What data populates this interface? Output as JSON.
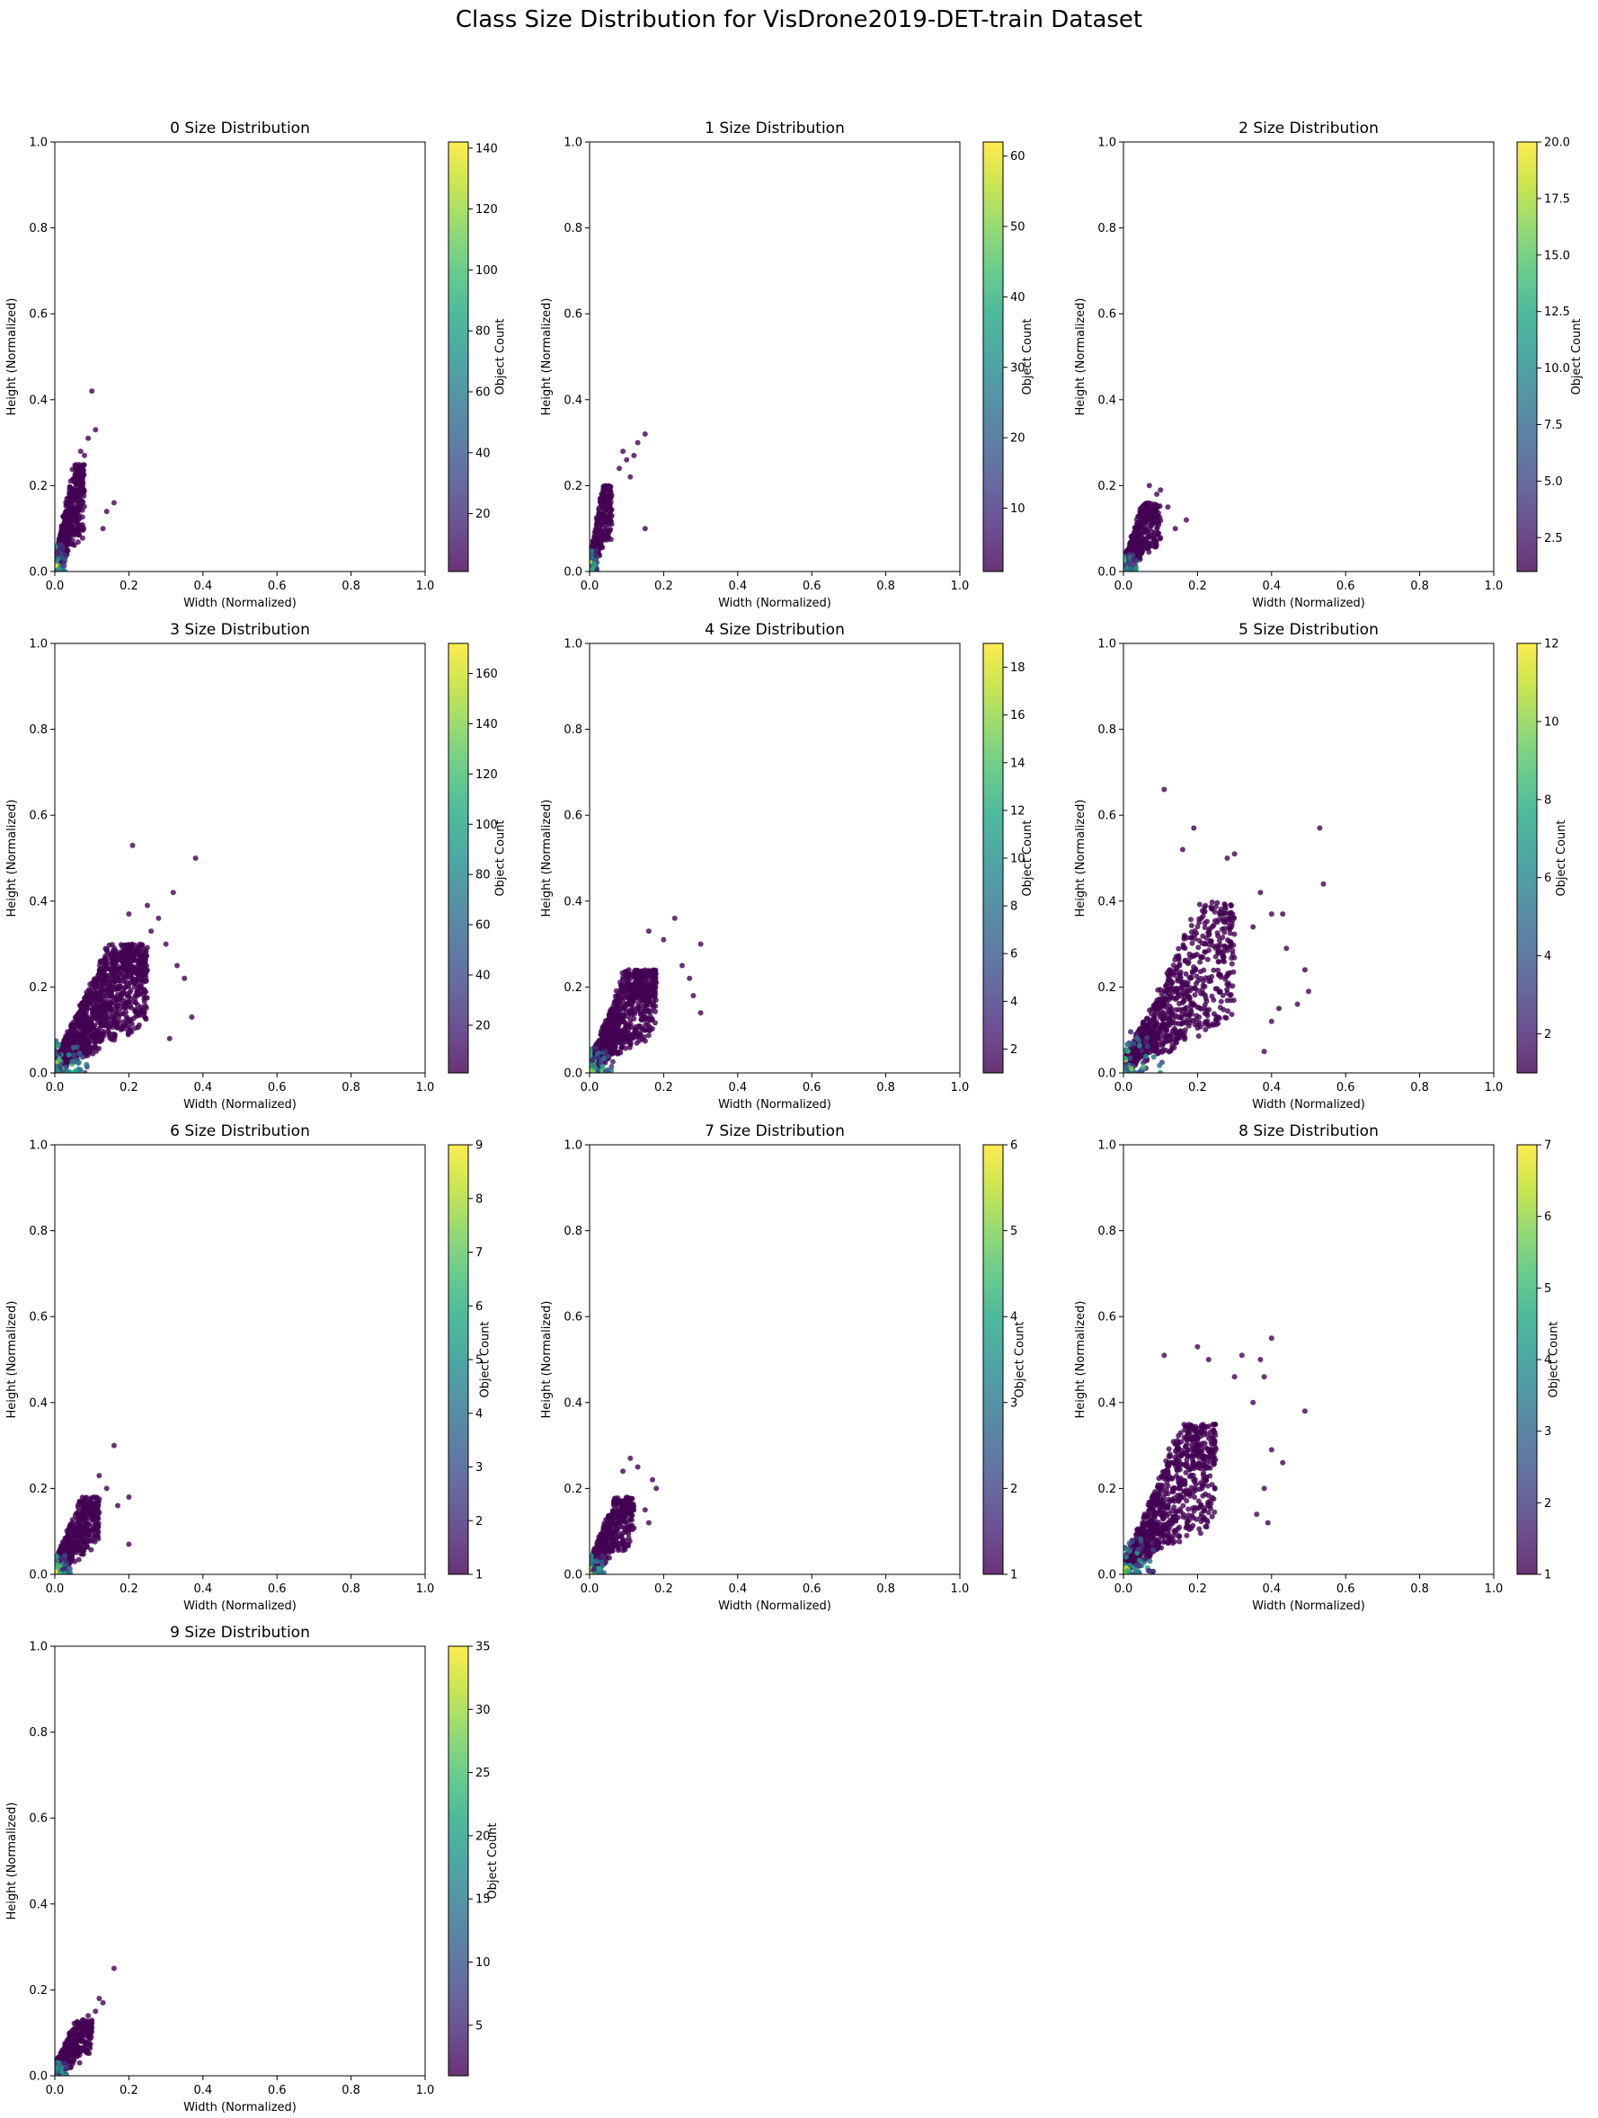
{
  "figure": {
    "title": "Class Size Distribution for VisDrone2019-DET-train Dataset"
  },
  "chart_data": [
    {
      "type": "scatter",
      "title": "0 Size Distribution",
      "xlabel": "Width (Normalized)",
      "ylabel": "Height (Normalized)",
      "xlim": [
        0,
        1
      ],
      "ylim": [
        0,
        1
      ],
      "xticks": [
        "0.0",
        "0.2",
        "0.4",
        "0.6",
        "0.8",
        "1.0"
      ],
      "yticks": [
        "0.0",
        "0.2",
        "0.4",
        "0.6",
        "0.8",
        "1.0"
      ],
      "colorbar": {
        "label": "Object Count",
        "min": 1,
        "max": 142,
        "ticks": [
          "20",
          "40",
          "60",
          "80",
          "100",
          "120",
          "140"
        ]
      },
      "cluster": {
        "wmax": 0.08,
        "hmax": 0.25,
        "slope": 2.8,
        "n": 650
      },
      "outliers": [
        [
          0.1,
          0.42
        ],
        [
          0.11,
          0.33
        ],
        [
          0.09,
          0.31
        ],
        [
          0.16,
          0.16
        ],
        [
          0.14,
          0.14
        ],
        [
          0.13,
          0.1
        ],
        [
          0.08,
          0.27
        ],
        [
          0.07,
          0.28
        ]
      ]
    },
    {
      "type": "scatter",
      "title": "1 Size Distribution",
      "xlabel": "Width (Normalized)",
      "ylabel": "Height (Normalized)",
      "xlim": [
        0,
        1
      ],
      "ylim": [
        0,
        1
      ],
      "xticks": [
        "0.0",
        "0.2",
        "0.4",
        "0.6",
        "0.8",
        "1.0"
      ],
      "yticks": [
        "0.0",
        "0.2",
        "0.4",
        "0.6",
        "0.8",
        "1.0"
      ],
      "colorbar": {
        "label": "Object Count",
        "min": 1,
        "max": 62,
        "ticks": [
          "10",
          "20",
          "30",
          "40",
          "50",
          "60"
        ]
      },
      "cluster": {
        "wmax": 0.06,
        "hmax": 0.2,
        "slope": 3.2,
        "n": 420
      },
      "outliers": [
        [
          0.15,
          0.32
        ],
        [
          0.13,
          0.3
        ],
        [
          0.12,
          0.27
        ],
        [
          0.1,
          0.26
        ],
        [
          0.09,
          0.28
        ],
        [
          0.15,
          0.1
        ],
        [
          0.11,
          0.22
        ],
        [
          0.08,
          0.24
        ]
      ]
    },
    {
      "type": "scatter",
      "title": "2 Size Distribution",
      "xlabel": "Width (Normalized)",
      "ylabel": "Height (Normalized)",
      "xlim": [
        0,
        1
      ],
      "ylim": [
        0,
        1
      ],
      "xticks": [
        "0.0",
        "0.2",
        "0.4",
        "0.6",
        "0.8",
        "1.0"
      ],
      "yticks": [
        "0.0",
        "0.2",
        "0.4",
        "0.6",
        "0.8",
        "1.0"
      ],
      "colorbar": {
        "label": "Object Count",
        "min": 1,
        "max": 20,
        "ticks": [
          "2.5",
          "5.0",
          "7.5",
          "10.0",
          "12.5",
          "15.0",
          "17.5",
          "20.0"
        ]
      },
      "cluster": {
        "wmax": 0.1,
        "hmax": 0.16,
        "slope": 1.6,
        "n": 520
      },
      "outliers": [
        [
          0.17,
          0.12
        ],
        [
          0.1,
          0.19
        ],
        [
          0.07,
          0.2
        ],
        [
          0.14,
          0.1
        ],
        [
          0.12,
          0.15
        ],
        [
          0.09,
          0.18
        ]
      ]
    },
    {
      "type": "scatter",
      "title": "3 Size Distribution",
      "xlabel": "Width (Normalized)",
      "ylabel": "Height (Normalized)",
      "xlim": [
        0,
        1
      ],
      "ylim": [
        0,
        1
      ],
      "xticks": [
        "0.0",
        "0.2",
        "0.4",
        "0.6",
        "0.8",
        "1.0"
      ],
      "yticks": [
        "0.0",
        "0.2",
        "0.4",
        "0.6",
        "0.8",
        "1.0"
      ],
      "colorbar": {
        "label": "Object Count",
        "min": 1,
        "max": 172,
        "ticks": [
          "20",
          "40",
          "60",
          "80",
          "100",
          "120",
          "140",
          "160"
        ]
      },
      "cluster": {
        "wmax": 0.25,
        "hmax": 0.3,
        "slope": 1.2,
        "n": 1600
      },
      "outliers": [
        [
          0.21,
          0.53
        ],
        [
          0.38,
          0.5
        ],
        [
          0.32,
          0.42
        ],
        [
          0.25,
          0.39
        ],
        [
          0.28,
          0.36
        ],
        [
          0.35,
          0.22
        ],
        [
          0.37,
          0.13
        ],
        [
          0.3,
          0.3
        ],
        [
          0.33,
          0.25
        ],
        [
          0.26,
          0.33
        ],
        [
          0.2,
          0.37
        ],
        [
          0.31,
          0.08
        ]
      ]
    },
    {
      "type": "scatter",
      "title": "4 Size Distribution",
      "xlabel": "Width (Normalized)",
      "ylabel": "Height (Normalized)",
      "xlim": [
        0,
        1
      ],
      "ylim": [
        0,
        1
      ],
      "xticks": [
        "0.0",
        "0.2",
        "0.4",
        "0.6",
        "0.8",
        "1.0"
      ],
      "yticks": [
        "0.0",
        "0.2",
        "0.4",
        "0.6",
        "0.8",
        "1.0"
      ],
      "colorbar": {
        "label": "Object Count",
        "min": 1,
        "max": 19,
        "ticks": [
          "2",
          "4",
          "6",
          "8",
          "10",
          "12",
          "14",
          "16",
          "18"
        ]
      },
      "cluster": {
        "wmax": 0.18,
        "hmax": 0.24,
        "slope": 1.4,
        "n": 1100
      },
      "outliers": [
        [
          0.23,
          0.36
        ],
        [
          0.3,
          0.3
        ],
        [
          0.28,
          0.18
        ],
        [
          0.3,
          0.14
        ],
        [
          0.25,
          0.25
        ],
        [
          0.2,
          0.31
        ],
        [
          0.16,
          0.33
        ],
        [
          0.27,
          0.22
        ]
      ]
    },
    {
      "type": "scatter",
      "title": "5 Size Distribution",
      "xlabel": "Width (Normalized)",
      "ylabel": "Height (Normalized)",
      "xlim": [
        0,
        1
      ],
      "ylim": [
        0,
        1
      ],
      "xticks": [
        "0.0",
        "0.2",
        "0.4",
        "0.6",
        "0.8",
        "1.0"
      ],
      "yticks": [
        "0.0",
        "0.2",
        "0.4",
        "0.6",
        "0.8",
        "1.0"
      ],
      "colorbar": {
        "label": "Object Count",
        "min": 1,
        "max": 12,
        "ticks": [
          "2",
          "4",
          "6",
          "8",
          "10",
          "12"
        ]
      },
      "cluster": {
        "wmax": 0.3,
        "hmax": 0.4,
        "slope": 1.1,
        "n": 1000
      },
      "outliers": [
        [
          0.11,
          0.66
        ],
        [
          0.53,
          0.57
        ],
        [
          0.54,
          0.44
        ],
        [
          0.19,
          0.57
        ],
        [
          0.3,
          0.51
        ],
        [
          0.28,
          0.5
        ],
        [
          0.16,
          0.52
        ],
        [
          0.4,
          0.37
        ],
        [
          0.43,
          0.37
        ],
        [
          0.44,
          0.29
        ],
        [
          0.49,
          0.24
        ],
        [
          0.5,
          0.19
        ],
        [
          0.47,
          0.16
        ],
        [
          0.42,
          0.15
        ],
        [
          0.4,
          0.12
        ],
        [
          0.38,
          0.05
        ],
        [
          0.35,
          0.34
        ],
        [
          0.37,
          0.42
        ]
      ]
    },
    {
      "type": "scatter",
      "title": "6 Size Distribution",
      "xlabel": "Width (Normalized)",
      "ylabel": "Height (Normalized)",
      "xlim": [
        0,
        1
      ],
      "ylim": [
        0,
        1
      ],
      "xticks": [
        "0.0",
        "0.2",
        "0.4",
        "0.6",
        "0.8",
        "1.0"
      ],
      "yticks": [
        "0.0",
        "0.2",
        "0.4",
        "0.6",
        "0.8",
        "1.0"
      ],
      "colorbar": {
        "label": "Object Count",
        "min": 1,
        "max": 9,
        "ticks": [
          "1",
          "2",
          "3",
          "4",
          "5",
          "6",
          "7",
          "8",
          "9"
        ]
      },
      "cluster": {
        "wmax": 0.12,
        "hmax": 0.18,
        "slope": 1.4,
        "n": 600
      },
      "outliers": [
        [
          0.16,
          0.3
        ],
        [
          0.2,
          0.18
        ],
        [
          0.2,
          0.07
        ],
        [
          0.12,
          0.23
        ],
        [
          0.17,
          0.16
        ],
        [
          0.14,
          0.2
        ]
      ]
    },
    {
      "type": "scatter",
      "title": "7 Size Distribution",
      "xlabel": "Width (Normalized)",
      "ylabel": "Height (Normalized)",
      "xlim": [
        0,
        1
      ],
      "ylim": [
        0,
        1
      ],
      "xticks": [
        "0.0",
        "0.2",
        "0.4",
        "0.6",
        "0.8",
        "1.0"
      ],
      "yticks": [
        "0.0",
        "0.2",
        "0.4",
        "0.6",
        "0.8",
        "1.0"
      ],
      "colorbar": {
        "label": "Object Count",
        "min": 1,
        "max": 6,
        "ticks": [
          "1",
          "2",
          "3",
          "4",
          "5",
          "6"
        ]
      },
      "cluster": {
        "wmax": 0.12,
        "hmax": 0.18,
        "slope": 1.5,
        "n": 600
      },
      "outliers": [
        [
          0.11,
          0.27
        ],
        [
          0.13,
          0.25
        ],
        [
          0.17,
          0.22
        ],
        [
          0.18,
          0.2
        ],
        [
          0.15,
          0.15
        ],
        [
          0.16,
          0.12
        ],
        [
          0.09,
          0.24
        ]
      ]
    },
    {
      "type": "scatter",
      "title": "8 Size Distribution",
      "xlabel": "Width (Normalized)",
      "ylabel": "Height (Normalized)",
      "xlim": [
        0,
        1
      ],
      "ylim": [
        0,
        1
      ],
      "xticks": [
        "0.0",
        "0.2",
        "0.4",
        "0.6",
        "0.8",
        "1.0"
      ],
      "yticks": [
        "0.0",
        "0.2",
        "0.4",
        "0.6",
        "0.8",
        "1.0"
      ],
      "colorbar": {
        "label": "Object Count",
        "min": 1,
        "max": 7,
        "ticks": [
          "1",
          "2",
          "3",
          "4",
          "5",
          "6",
          "7"
        ]
      },
      "cluster": {
        "wmax": 0.25,
        "hmax": 0.35,
        "slope": 1.3,
        "n": 1100
      },
      "outliers": [
        [
          0.4,
          0.55
        ],
        [
          0.2,
          0.53
        ],
        [
          0.11,
          0.51
        ],
        [
          0.32,
          0.51
        ],
        [
          0.37,
          0.5
        ],
        [
          0.3,
          0.46
        ],
        [
          0.38,
          0.46
        ],
        [
          0.49,
          0.38
        ],
        [
          0.4,
          0.29
        ],
        [
          0.43,
          0.26
        ],
        [
          0.38,
          0.2
        ],
        [
          0.36,
          0.14
        ],
        [
          0.39,
          0.12
        ],
        [
          0.35,
          0.4
        ],
        [
          0.23,
          0.5
        ]
      ]
    },
    {
      "type": "scatter",
      "title": "9 Size Distribution",
      "xlabel": "Width (Normalized)",
      "ylabel": "Height (Normalized)",
      "xlim": [
        0,
        1
      ],
      "ylim": [
        0,
        1
      ],
      "xticks": [
        "0.0",
        "0.2",
        "0.4",
        "0.6",
        "0.8",
        "1.0"
      ],
      "yticks": [
        "0.0",
        "0.2",
        "0.4",
        "0.6",
        "0.8",
        "1.0"
      ],
      "colorbar": {
        "label": "Object Count",
        "min": 1,
        "max": 35,
        "ticks": [
          "5",
          "10",
          "15",
          "20",
          "25",
          "30",
          "35"
        ]
      },
      "cluster": {
        "wmax": 0.1,
        "hmax": 0.13,
        "slope": 1.2,
        "n": 550
      },
      "outliers": [
        [
          0.16,
          0.25
        ],
        [
          0.12,
          0.18
        ],
        [
          0.13,
          0.17
        ],
        [
          0.11,
          0.15
        ],
        [
          0.09,
          0.14
        ]
      ]
    }
  ]
}
